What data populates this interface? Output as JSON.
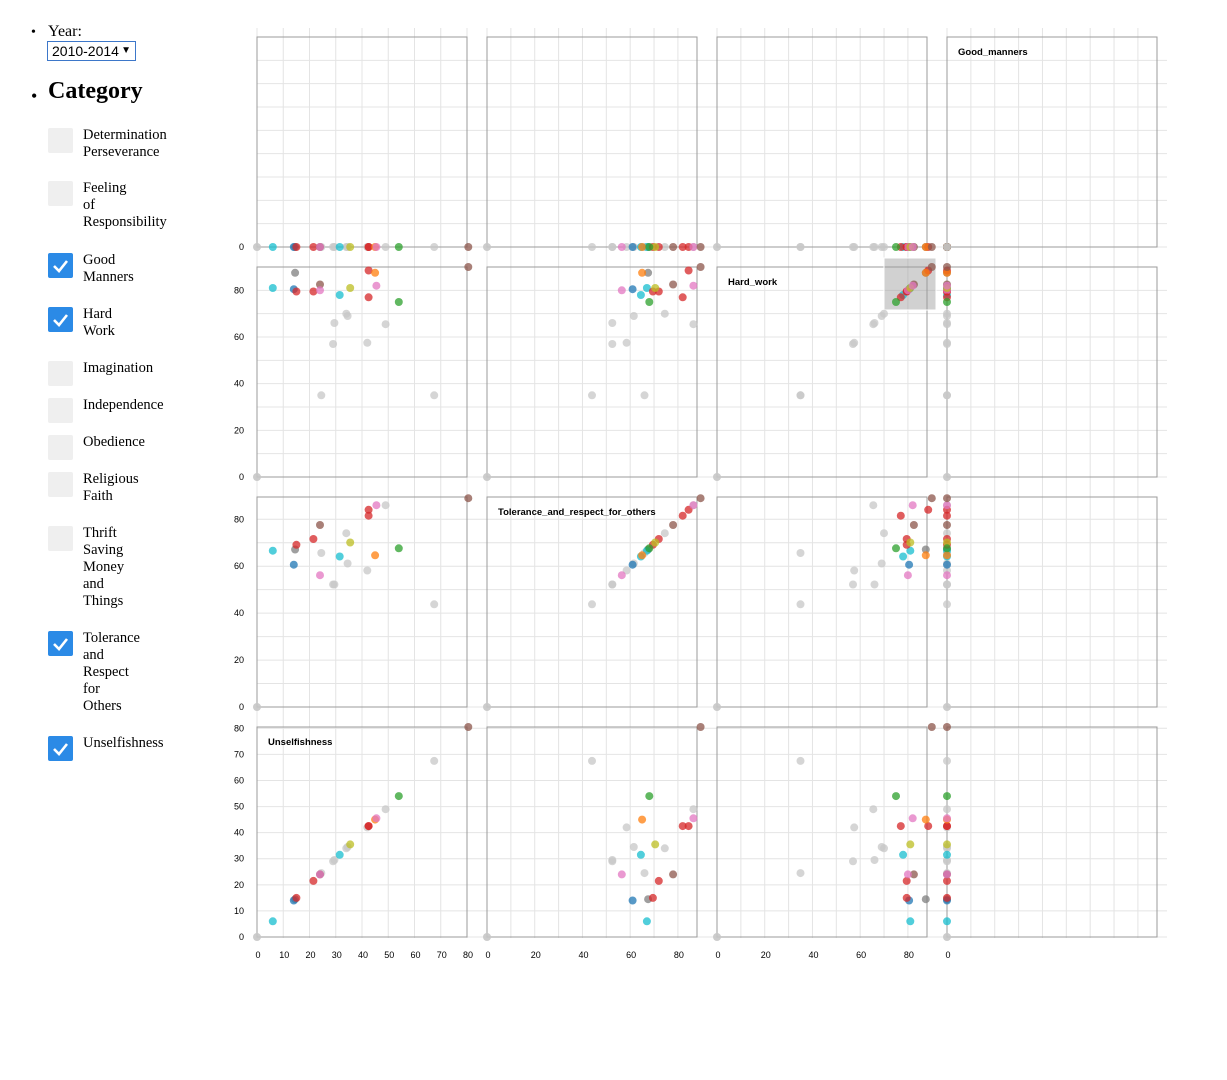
{
  "controls": {
    "year_label": "Year:",
    "year_value": "2010-2014",
    "category_title": "Category"
  },
  "categories": [
    {
      "label": "Determination Perseverance",
      "checked": false,
      "lines": [
        "Determination",
        "Perseverance"
      ]
    },
    {
      "label": "Feeling of Responsibility",
      "checked": false,
      "lines": [
        "Feeling",
        "of",
        "Responsibility"
      ]
    },
    {
      "label": "Good Manners",
      "checked": true,
      "lines": [
        "Good",
        "Manners"
      ]
    },
    {
      "label": "Hard Work",
      "checked": true,
      "lines": [
        "Hard",
        "Work"
      ]
    },
    {
      "label": "Imagination",
      "checked": false,
      "lines": [
        "Imagination"
      ]
    },
    {
      "label": "Independence",
      "checked": false,
      "lines": [
        "Independence"
      ]
    },
    {
      "label": "Obedience",
      "checked": false,
      "lines": [
        "Obedience"
      ]
    },
    {
      "label": "Religious Faith",
      "checked": false,
      "lines": [
        "Religious",
        "Faith"
      ]
    },
    {
      "label": "Thrift Saving Money and Things",
      "checked": false,
      "lines": [
        "Thrift",
        "Saving",
        "Money",
        "and",
        "Things"
      ]
    },
    {
      "label": "Tolerance and Respect for Others",
      "checked": true,
      "lines": [
        "Tolerance",
        "and",
        "Respect",
        "for",
        "Others"
      ]
    },
    {
      "label": "Unselfishness",
      "checked": true,
      "lines": [
        "Unselfishness"
      ]
    }
  ],
  "chart_data": {
    "type": "scatter",
    "variables": [
      "Good_manners",
      "Hard_work",
      "Tolerance_and_respect_for_others",
      "Unselfishness"
    ],
    "x_ticks": [
      [
        0,
        10,
        20,
        30,
        40,
        50,
        60,
        70,
        80
      ],
      [
        0,
        20,
        40,
        60,
        80
      ],
      [
        0,
        20,
        40,
        60,
        80
      ],
      [
        0
      ]
    ],
    "y_ticks": [
      [
        0
      ],
      [
        0,
        20,
        40,
        60,
        80
      ],
      [
        0,
        20,
        40,
        60,
        80
      ],
      [
        0,
        10,
        20,
        30,
        40,
        50,
        60,
        70,
        80
      ]
    ],
    "colors": {
      "grey": "#c7c7c7",
      "blue": "#1f77b4",
      "orange": "#ff7f0e",
      "green": "#2ca02c",
      "red": "#d62728",
      "brown": "#8c564b",
      "pink": "#e377c2",
      "olive": "#bcbd22",
      "cyan": "#17becf",
      "darkgrey": "#7f7f7f"
    },
    "points": [
      {
        "c": "darkgrey",
        "v": [
          14.5,
          87.5,
          67.5,
          14.5
        ]
      },
      {
        "c": "grey",
        "v": [
          24.0,
          35.0,
          66.0,
          24.5
        ]
      },
      {
        "c": "grey",
        "v": [
          32.5,
          57.0,
          52.5,
          29.0
        ]
      },
      {
        "c": "grey",
        "v": [
          33.0,
          70.0,
          74.5,
          34.0
        ]
      },
      {
        "c": "grey",
        "v": [
          48.5,
          65.5,
          86.5,
          49.0
        ]
      },
      {
        "c": "grey",
        "v": [
          67.5,
          35.0,
          44.0,
          67.5
        ]
      },
      {
        "c": "grey",
        "v": [
          30.0,
          66.0,
          52.5,
          29.5
        ]
      },
      {
        "c": "grey",
        "v": [
          41.5,
          57.5,
          58.5,
          42.0
        ]
      },
      {
        "c": "grey",
        "v": [
          34.5,
          69.0,
          61.5,
          34.5
        ]
      },
      {
        "c": "cyan",
        "v": [
          6.0,
          81.0,
          67.0,
          6.0
        ]
      },
      {
        "c": "cyan",
        "v": [
          31.0,
          78.0,
          64.5,
          31.5
        ]
      },
      {
        "c": "blue",
        "v": [
          13.5,
          80.5,
          61.0,
          14.0
        ]
      },
      {
        "c": "red",
        "v": [
          15.0,
          79.5,
          69.5,
          15.0
        ]
      },
      {
        "c": "red",
        "v": [
          21.5,
          79.5,
          72.0,
          21.5
        ]
      },
      {
        "c": "brown",
        "v": [
          24.0,
          82.5,
          78.0,
          24.0
        ]
      },
      {
        "c": "pink",
        "v": [
          24.0,
          80.0,
          56.5,
          24.0
        ]
      },
      {
        "c": "olive",
        "v": [
          35.5,
          81.0,
          70.5,
          35.5
        ]
      },
      {
        "c": "red",
        "v": [
          42.0,
          77.0,
          82.0,
          42.5
        ]
      },
      {
        "c": "red",
        "v": [
          42.0,
          88.5,
          84.5,
          42.5
        ]
      },
      {
        "c": "orange",
        "v": [
          45.0,
          87.5,
          65.0,
          45.0
        ]
      },
      {
        "c": "pink",
        "v": [
          45.5,
          82.0,
          86.5,
          45.5
        ]
      },
      {
        "c": "green",
        "v": [
          54.0,
          75.0,
          68.0,
          54.0
        ]
      },
      {
        "c": "brown",
        "v": [
          80.0,
          90.0,
          89.5,
          80.5
        ]
      }
    ]
  }
}
